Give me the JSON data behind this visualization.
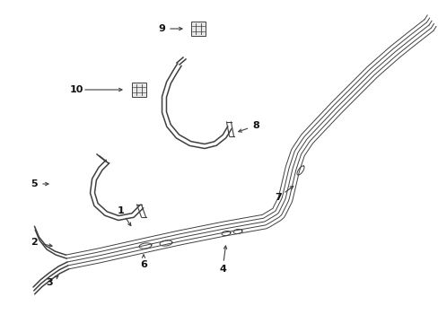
{
  "bg_color": "#ffffff",
  "line_color": "#404040",
  "lw_main": 1.1,
  "lw_thin": 0.7,
  "figsize": [
    4.89,
    3.6
  ],
  "dpi": 100,
  "xlim": [
    0,
    489
  ],
  "ylim": [
    0,
    360
  ]
}
